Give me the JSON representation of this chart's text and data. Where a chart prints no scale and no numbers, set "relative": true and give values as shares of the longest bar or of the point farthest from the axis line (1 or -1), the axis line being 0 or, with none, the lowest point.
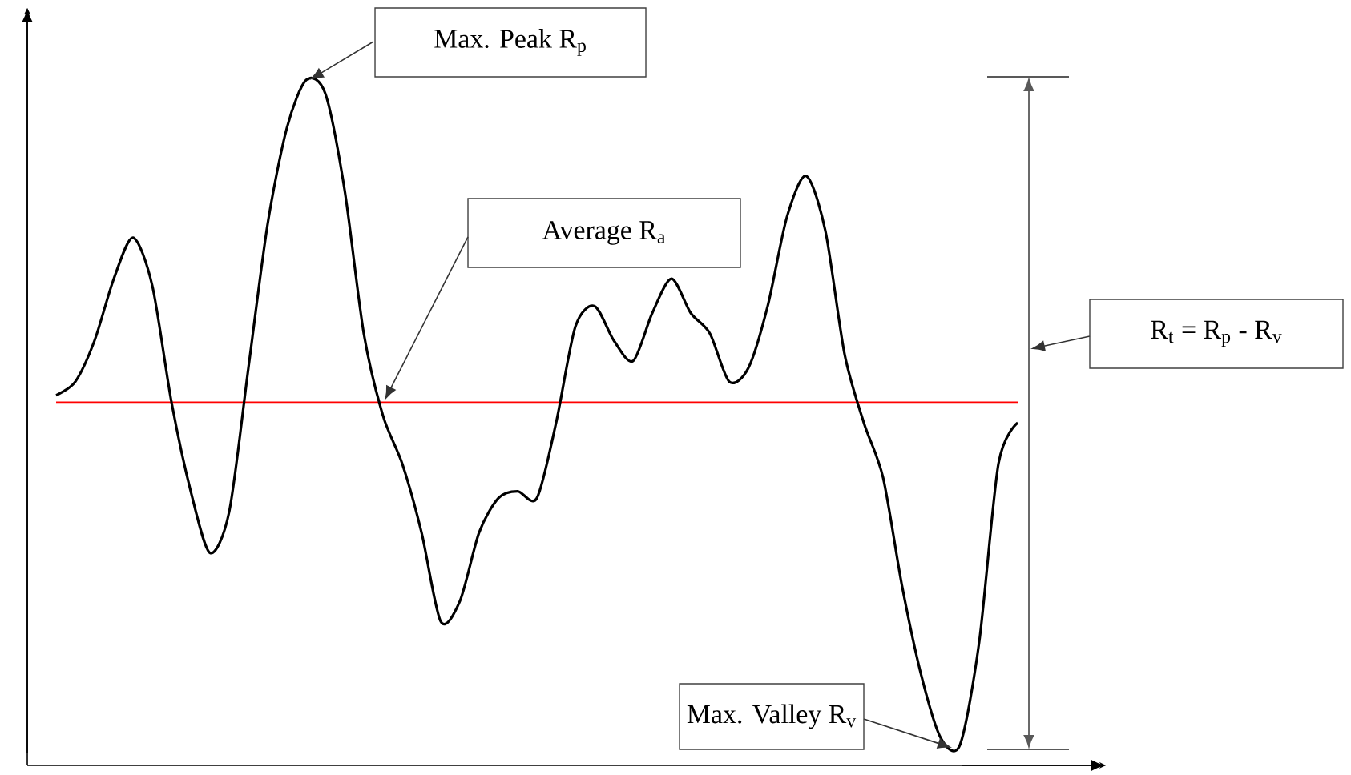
{
  "chart_data": {
    "type": "line",
    "relative": true,
    "categories": [
      null,
      null,
      null,
      null,
      null,
      null,
      null,
      null,
      null,
      null,
      null,
      null,
      null,
      null,
      null,
      null,
      null,
      null,
      null,
      null,
      null,
      null,
      null,
      null,
      null,
      null,
      null,
      null,
      null,
      null,
      null,
      null,
      null,
      null,
      null,
      null,
      null,
      null,
      null,
      null,
      null,
      null,
      null,
      null,
      null,
      null,
      null,
      null,
      null,
      null,
      null
    ],
    "series": [
      {
        "color": "#000000",
        "values": [
          0.54,
          0.56,
          0.62,
          0.71,
          0.77,
          0.7,
          0.53,
          0.4,
          0.31,
          0.37,
          0.58,
          0.79,
          0.93,
          1,
          0.98,
          0.84,
          0.63,
          0.51,
          0.44,
          0.34,
          0.21,
          0.24,
          0.34,
          0.39,
          0.4,
          0.39,
          0.5,
          0.64,
          0.67,
          0.62,
          0.59,
          0.66,
          0.71,
          0.66,
          0.63,
          0.56,
          0.58,
          0.67,
          0.8,
          0.86,
          0.78,
          0.6,
          0.5,
          0.42,
          0.26,
          0.13,
          0.04,
          0.03,
          0.18,
          0.44,
          0.5
        ]
      }
    ],
    "ref_lines": [
      {
        "axis": "y",
        "value": 0.53,
        "color": "#ff0000"
      }
    ],
    "annotations": [
      "Max. Peak R$_{p}$",
      "Average R$_{a}$",
      "R$_{t}$ = R$_{p}$ - R$_{v}$",
      "Max. Valley R$_{v}$"
    ],
    "marker": "none",
    "line_style": "solid"
  }
}
